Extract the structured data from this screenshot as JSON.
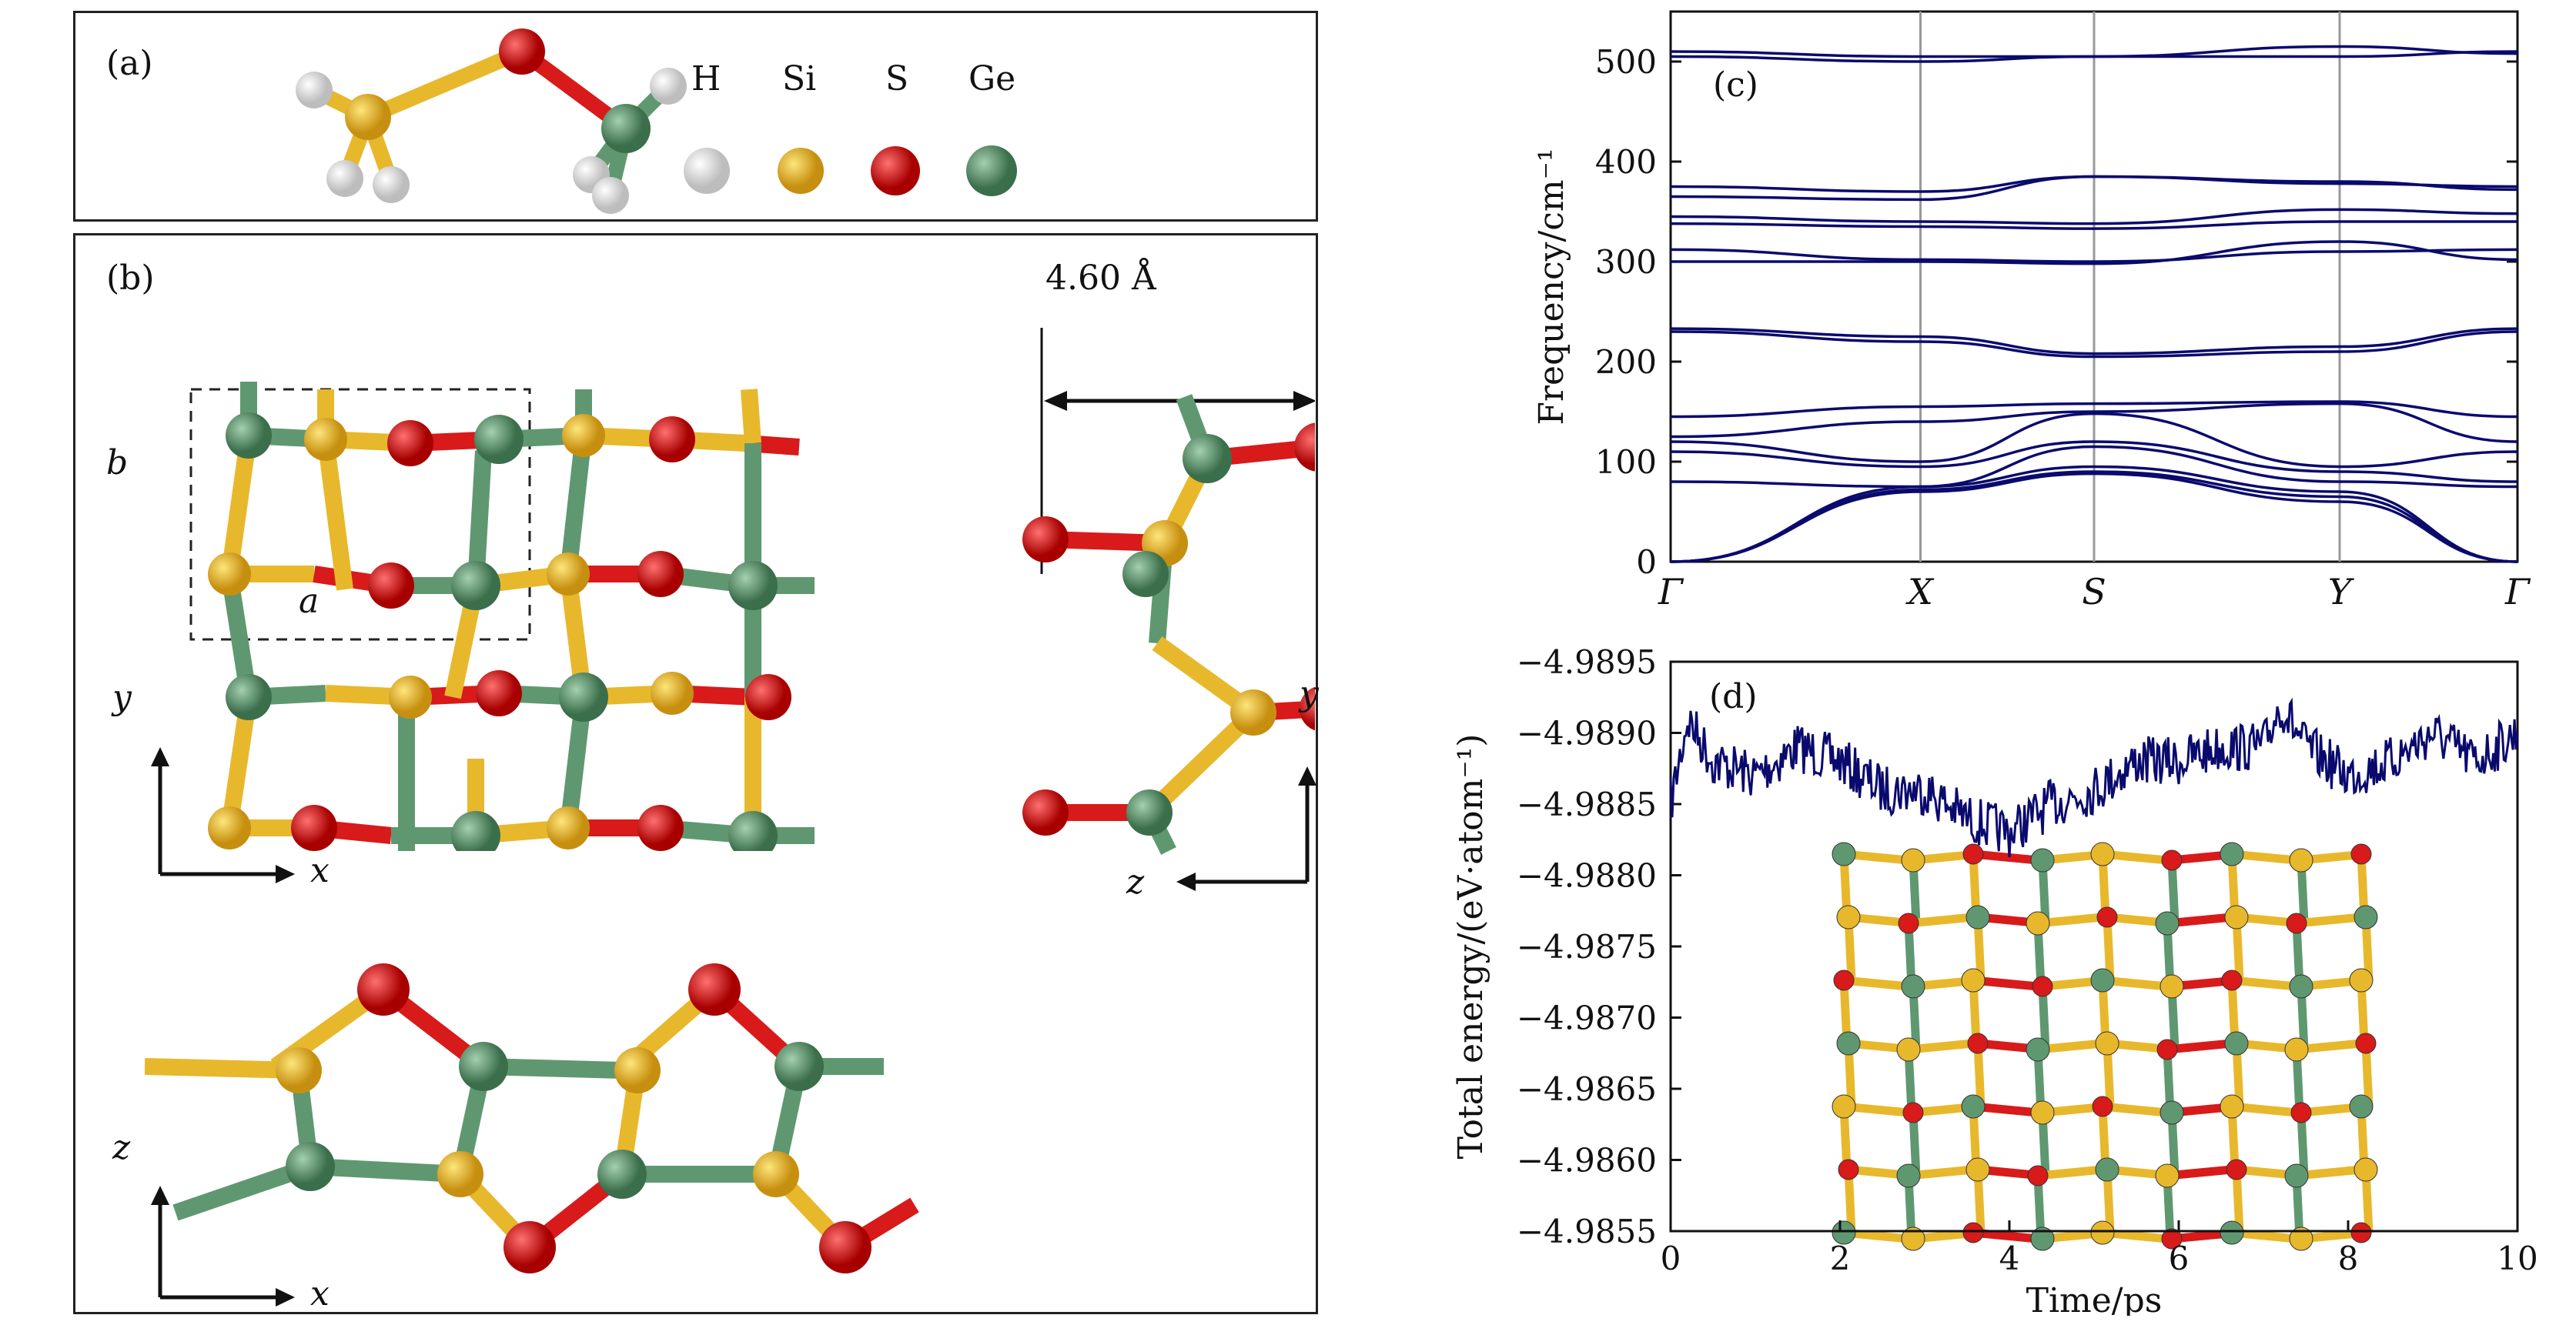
{
  "panel_a": {
    "label": "(a)",
    "legend": [
      {
        "symbol": "H",
        "color": "#e8e8e8"
      },
      {
        "symbol": "Si",
        "color": "#e8b82c"
      },
      {
        "symbol": "S",
        "color": "#d81a1a"
      },
      {
        "symbol": "Ge",
        "color": "#5f9870"
      }
    ]
  },
  "panel_b": {
    "label": "(b)",
    "cell_a": "a",
    "cell_b": "b",
    "width_label": "4.60 Å",
    "axes_top_left": {
      "v": "y",
      "h": "x"
    },
    "axes_top_right": {
      "v": "y",
      "h": "z"
    },
    "axes_bottom": {
      "v": "z",
      "h": "x"
    }
  },
  "colors": {
    "H": "#e8e8e8",
    "Si": "#e8b82c",
    "S": "#d81a1a",
    "Ge": "#5f9870",
    "line": "#0a0a6e"
  },
  "chart_data": [
    {
      "type": "line",
      "panel_label": "(c)",
      "ylabel": "Frequency/cm⁻¹",
      "xlabel": "",
      "x_ticks": [
        "Γ",
        "X",
        "S",
        "Y",
        "Γ"
      ],
      "x_tick_positions": [
        0,
        0.295,
        0.5,
        0.79,
        1.0
      ],
      "ylim": [
        0,
        550
      ],
      "y_ticks": [
        0,
        100,
        200,
        300,
        400,
        500
      ],
      "grid": "vertical lines at high-symmetry points",
      "series": [
        {
          "values": [
            505,
            500,
            505,
            515,
            508
          ]
        },
        {
          "values": [
            510,
            505,
            505,
            505,
            510
          ]
        },
        {
          "values": [
            375,
            370,
            385,
            378,
            375
          ]
        },
        {
          "values": [
            365,
            362,
            385,
            380,
            372
          ]
        },
        {
          "values": [
            345,
            340,
            338,
            352,
            348
          ]
        },
        {
          "values": [
            338,
            335,
            333,
            340,
            340
          ]
        },
        {
          "values": [
            312,
            302,
            300,
            310,
            312
          ]
        },
        {
          "values": [
            300,
            300,
            298,
            320,
            302
          ]
        },
        {
          "values": [
            233,
            225,
            208,
            215,
            233
          ]
        },
        {
          "values": [
            230,
            220,
            205,
            210,
            230
          ]
        },
        {
          "values": [
            145,
            155,
            158,
            160,
            145
          ]
        },
        {
          "values": [
            125,
            140,
            150,
            158,
            120
          ]
        },
        {
          "values": [
            120,
            100,
            148,
            95,
            110
          ]
        },
        {
          "values": [
            110,
            95,
            120,
            90,
            80
          ]
        },
        {
          "values": [
            80,
            75,
            115,
            80,
            75
          ]
        },
        {
          "values": [
            0,
            75,
            95,
            70,
            0
          ]
        },
        {
          "values": [
            0,
            72,
            90,
            65,
            0
          ]
        },
        {
          "values": [
            0,
            70,
            88,
            60,
            0
          ]
        }
      ]
    },
    {
      "type": "line",
      "panel_label": "(d)",
      "xlabel": "Time/ps",
      "ylabel": "Total energy/(eV·atom⁻¹)",
      "xlim": [
        0,
        10
      ],
      "x_ticks": [
        0,
        2,
        4,
        6,
        8,
        10
      ],
      "ylim": [
        -4.9855,
        -4.9895
      ],
      "y_ticks": [
        -4.9895,
        -4.989,
        -4.9885,
        -4.988,
        -4.9875,
        -4.987,
        -4.9865,
        -4.986,
        -4.9855
      ],
      "y_tick_labels": [
        "−4.9895",
        "−4.9890",
        "−4.9885",
        "−4.9880",
        "−4.9875",
        "−4.9870",
        "−4.9865",
        "−4.9860",
        "−4.9855"
      ],
      "series": [
        {
          "x": [
            0,
            0.2,
            0.5,
            1.0,
            1.5,
            2.0,
            2.5,
            3.0,
            3.5,
            4.0,
            4.5,
            5.0,
            5.5,
            6.0,
            6.5,
            7.0,
            7.2,
            7.5,
            8.0,
            8.5,
            9.0,
            9.5,
            10.0
          ],
          "y": [
            -4.9885,
            -4.9891,
            -4.9888,
            -4.9887,
            -4.9889,
            -4.9888,
            -4.9886,
            -4.9886,
            -4.9884,
            -4.9883,
            -4.9885,
            -4.9886,
            -4.9888,
            -4.9888,
            -4.9889,
            -4.9889,
            -4.9892,
            -4.9889,
            -4.9887,
            -4.9888,
            -4.989,
            -4.9888,
            -4.989
          ]
        }
      ]
    }
  ]
}
